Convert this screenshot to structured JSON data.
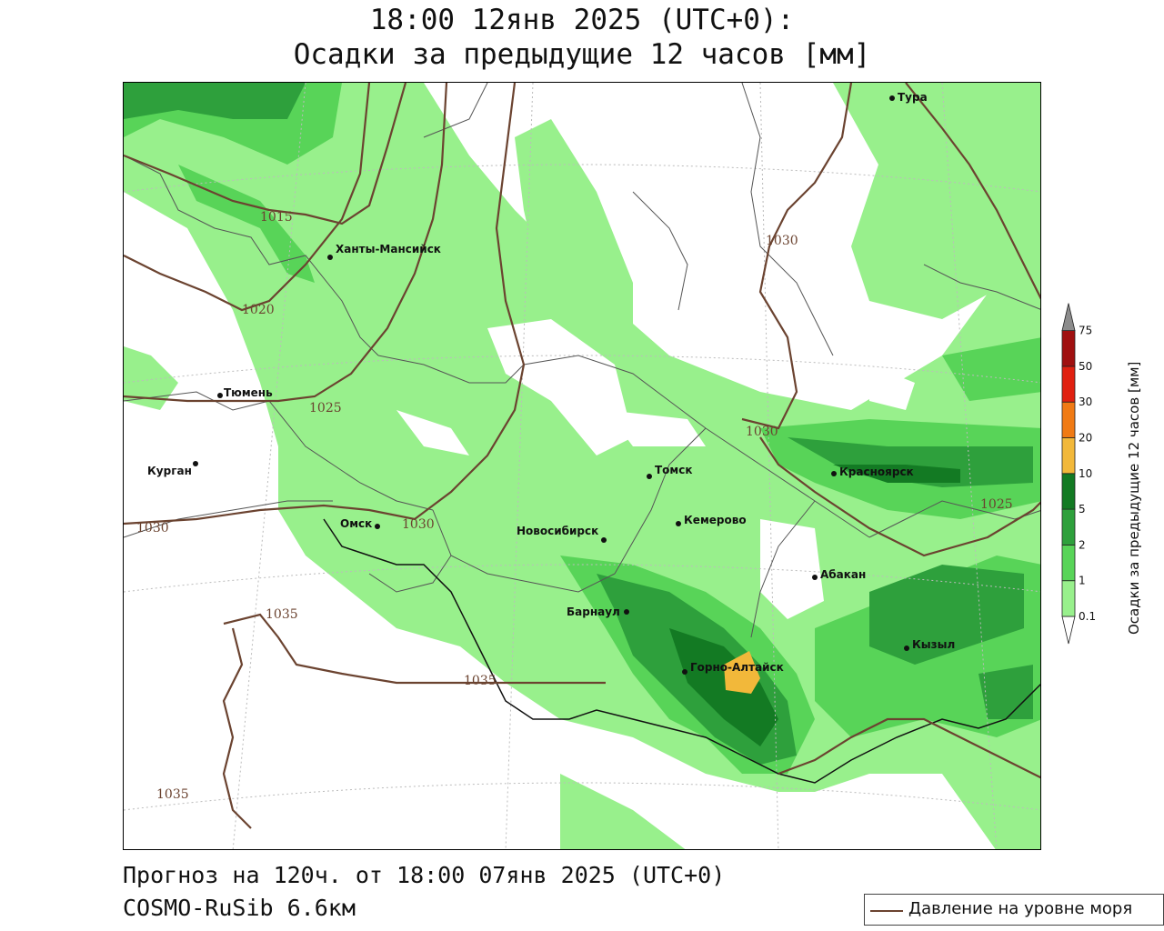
{
  "header": {
    "line1": "18:00 12янв 2025 (UTC+0):",
    "line2": "Осадки за предыдущие 12 часов [мм]"
  },
  "footer": {
    "line1": "Прогноз на 120ч. от 18:00 07янв 2025 (UTC+0)",
    "line2": "COSMO-RuSib 6.6км"
  },
  "legend": {
    "isobar_label": "Давление на уровне моря",
    "isobar_color": "#6b4330"
  },
  "colorbar": {
    "title": "Осадки за предыдущие 12 часов [мм]",
    "levels": [
      "0.1",
      "1",
      "2",
      "5",
      "10",
      "20",
      "30",
      "50",
      "75"
    ],
    "colors": [
      "#ffffff",
      "#98f08c",
      "#58d458",
      "#2ea03c",
      "#137a23",
      "#f2b83a",
      "#f07a14",
      "#e02010",
      "#a01010",
      "#8c8c8c"
    ]
  },
  "cities": [
    {
      "name": "Тура"
    },
    {
      "name": "Ханты-Мансийск"
    },
    {
      "name": "Тюмень"
    },
    {
      "name": "Курган"
    },
    {
      "name": "Омск"
    },
    {
      "name": "Новосибирск"
    },
    {
      "name": "Томск"
    },
    {
      "name": "Кемерово"
    },
    {
      "name": "Красноярск"
    },
    {
      "name": "Абакан"
    },
    {
      "name": "Барнаул"
    },
    {
      "name": "Горно-Алтайск"
    },
    {
      "name": "Кызыл"
    }
  ],
  "isobars": [
    {
      "label": "1015"
    },
    {
      "label": "1020"
    },
    {
      "label": "1025"
    },
    {
      "label": "1025"
    },
    {
      "label": "1030"
    },
    {
      "label": "1030"
    },
    {
      "label": "1030"
    },
    {
      "label": "1030"
    },
    {
      "label": "1035"
    },
    {
      "label": "1035"
    },
    {
      "label": "1035"
    }
  ]
}
